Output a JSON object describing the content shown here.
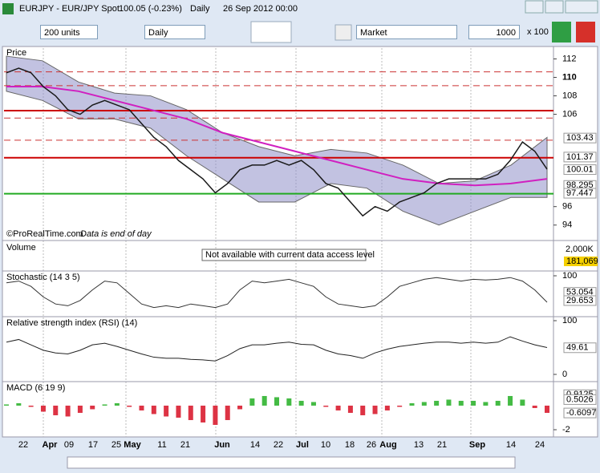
{
  "window": {
    "title": "EURJPY - EUR/JPY Spot",
    "change": "100.05 (-0.23%)",
    "period": "Daily",
    "datetime": "26 Sep 2012 00:00"
  },
  "toolbar": {
    "units": "200 units",
    "period": "Daily",
    "order_type": "Market",
    "quantity": "1000",
    "multiplier": "x 100"
  },
  "price_panel": {
    "label": "Price",
    "credit": "©ProRealTime.com",
    "note": "Data is end of day",
    "ylim": [
      92.5,
      113
    ],
    "yticks": [
      94,
      96,
      106,
      108,
      110,
      112
    ],
    "level_labels": [
      103.43,
      101.37,
      100.01,
      98.295,
      97.447
    ],
    "levels": [
      {
        "value": 106.4,
        "color": "#cc0000"
      },
      {
        "value": 101.3,
        "color": "#cc0000"
      },
      {
        "value": 97.4,
        "color": "#22aa22"
      }
    ],
    "dashed_levels": [
      {
        "value": 110.6,
        "color": "#cc3333"
      },
      {
        "value": 109.1,
        "color": "#cc3333"
      },
      {
        "value": 103.2,
        "color": "#cc3333"
      },
      {
        "value": 105.6,
        "color": "#cc3333"
      }
    ],
    "close": [
      110.5,
      111,
      110.5,
      109,
      108,
      106.5,
      106,
      107,
      107.5,
      107,
      106.5,
      105,
      103.5,
      102.5,
      101,
      100,
      99,
      97.5,
      98.5,
      100,
      100.5,
      100.5,
      101,
      100.5,
      101,
      100,
      98.5,
      98,
      96.5,
      95,
      96,
      95.5,
      96.5,
      97,
      97.5,
      98.5,
      99,
      99,
      99,
      99,
      99.5,
      101,
      103,
      102,
      100.05
    ],
    "ma": [
      109,
      109,
      108.5,
      107.5,
      106.5,
      105.5,
      104,
      103,
      102,
      101,
      100,
      99,
      98.5,
      98.3,
      98.5,
      99
    ],
    "band_upper": [
      112.3,
      111.8,
      109.5,
      108.3,
      108,
      106.5,
      104,
      102.5,
      101.5,
      102.2,
      101.8,
      100.5,
      98.5,
      98.8,
      100.5,
      103.5
    ],
    "band_lower": [
      108.5,
      107.5,
      105.5,
      105.5,
      104.5,
      101.5,
      99,
      96.5,
      96.5,
      98.5,
      98,
      95.5,
      94,
      95.5,
      97,
      97
    ]
  },
  "volume_panel": {
    "label": "Volume",
    "message": "Not available with current data access level",
    "axis_labels": [
      "2,000K",
      "181,069"
    ]
  },
  "stochastic_panel": {
    "label": "Stochastic (14 3 5)",
    "ylim": [
      0,
      100
    ],
    "yticks": [
      100
    ],
    "level_labels": [
      53.054,
      29.653
    ],
    "values": [
      80,
      85,
      70,
      40,
      20,
      15,
      30,
      60,
      85,
      80,
      50,
      20,
      10,
      15,
      10,
      20,
      15,
      10,
      20,
      60,
      85,
      80,
      85,
      90,
      80,
      70,
      40,
      20,
      15,
      10,
      15,
      40,
      70,
      80,
      90,
      95,
      90,
      85,
      90,
      88,
      90,
      95,
      85,
      60,
      25
    ]
  },
  "rsi_panel": {
    "label": "Relative strength index (RSI) (14)",
    "ylim": [
      0,
      100
    ],
    "yticks": [
      0,
      100
    ],
    "level_labels": [
      49.61
    ],
    "values": [
      60,
      65,
      55,
      45,
      40,
      38,
      45,
      55,
      58,
      52,
      45,
      38,
      32,
      30,
      30,
      28,
      27,
      25,
      35,
      48,
      55,
      55,
      58,
      60,
      56,
      55,
      45,
      38,
      35,
      30,
      40,
      47,
      52,
      55,
      58,
      60,
      60,
      58,
      60,
      58,
      60,
      70,
      62,
      55,
      50
    ]
  },
  "macd_panel": {
    "label": "MACD (6 19 9)",
    "ylim": [
      -2.6,
      1.73
    ],
    "yticks": [
      -2
    ],
    "level_labels": [
      0.9125,
      0.5026,
      -0.6097
    ],
    "values": [
      0.1,
      0.2,
      -0.1,
      -0.5,
      -0.8,
      -0.9,
      -0.6,
      -0.3,
      0.1,
      0.2,
      -0.1,
      -0.4,
      -0.7,
      -0.9,
      -1.0,
      -1.2,
      -1.4,
      -1.6,
      -1.2,
      -0.3,
      0.6,
      0.8,
      0.7,
      0.6,
      0.4,
      0.3,
      -0.1,
      -0.4,
      -0.6,
      -0.8,
      -0.7,
      -0.4,
      -0.1,
      0.2,
      0.3,
      0.4,
      0.5,
      0.4,
      0.4,
      0.3,
      0.4,
      0.8,
      0.5,
      -0.2,
      -0.6
    ]
  },
  "x_axis": {
    "labels": [
      "22",
      "Apr",
      "09",
      "17",
      "25",
      "May",
      "11",
      "21",
      "Jun",
      "14",
      "22",
      "Jul",
      "10",
      "18",
      "26",
      "Aug",
      "13",
      "21",
      "Sep",
      "14",
      "24"
    ]
  }
}
